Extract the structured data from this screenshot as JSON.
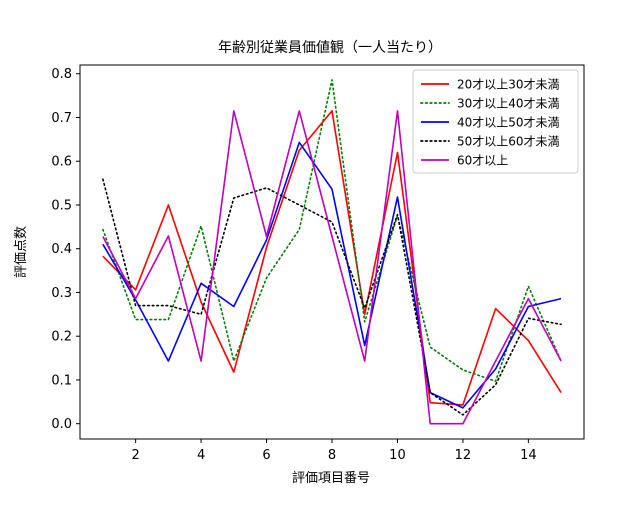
{
  "chart_data": {
    "type": "line",
    "title": "年齢別従業員価値観（一人当たり）",
    "xlabel": "評価項目番号",
    "ylabel": "評価点数",
    "x": [
      1,
      2,
      3,
      4,
      5,
      6,
      7,
      8,
      9,
      10,
      11,
      12,
      13,
      14,
      15
    ],
    "xlim": [
      0.3,
      15.7
    ],
    "ylim": [
      -0.035,
      0.82
    ],
    "xticks": [
      2,
      4,
      6,
      8,
      10,
      12,
      14
    ],
    "yticks": [
      0.0,
      0.1,
      0.2,
      0.3,
      0.4,
      0.5,
      0.6,
      0.7,
      0.8
    ],
    "ytick_labels": [
      "0.0",
      "0.1",
      "0.2",
      "0.3",
      "0.4",
      "0.5",
      "0.6",
      "0.7",
      "0.8"
    ],
    "grid": false,
    "legend_position": "top-right",
    "series": [
      {
        "name": "20才以上30才未満",
        "color": "#ff0000",
        "dash": "solid",
        "values": [
          0.383,
          0.306,
          0.5,
          0.278,
          0.118,
          0.403,
          0.625,
          0.715,
          0.25,
          0.62,
          0.048,
          0.043,
          0.263,
          0.19,
          0.071
        ]
      },
      {
        "name": "30才以上40才未満",
        "color": "#008000",
        "dash": "dotted",
        "values": [
          0.444,
          0.238,
          0.238,
          0.452,
          0.143,
          0.333,
          0.444,
          0.786,
          0.233,
          0.476,
          0.175,
          0.123,
          0.097,
          0.314,
          0.143
        ]
      },
      {
        "name": "40才以上50才未満",
        "color": "#0000ff",
        "dash": "solid",
        "values": [
          0.41,
          0.283,
          0.143,
          0.321,
          0.268,
          0.42,
          0.643,
          0.536,
          0.179,
          0.518,
          0.071,
          0.036,
          0.125,
          0.268,
          0.286
        ]
      },
      {
        "name": "50才以上60才未満",
        "color": "#000000",
        "dash": "dotted",
        "values": [
          0.559,
          0.27,
          0.27,
          0.25,
          0.516,
          0.539,
          0.5,
          0.461,
          0.264,
          0.478,
          0.071,
          0.02,
          0.089,
          0.241,
          0.227
        ]
      },
      {
        "name": "60才以上",
        "color": "#bf00bf",
        "dash": "solid",
        "values": [
          0.428,
          0.286,
          0.429,
          0.143,
          0.715,
          0.428,
          0.715,
          0.428,
          0.143,
          0.715,
          0.0,
          0.0,
          0.143,
          0.286,
          0.143
        ]
      }
    ]
  }
}
